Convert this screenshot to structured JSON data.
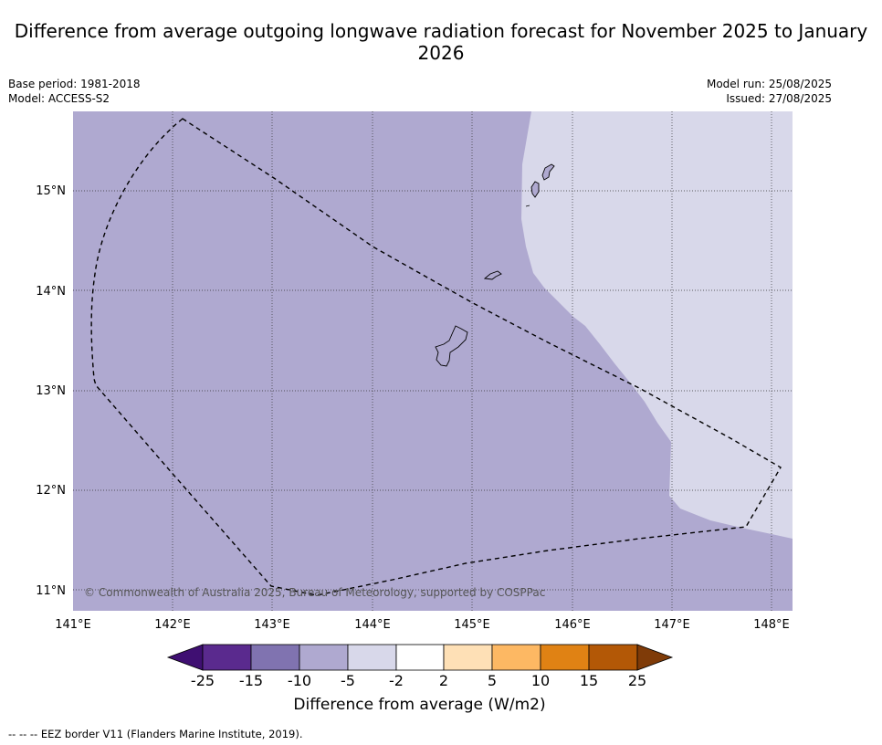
{
  "title": "Difference from average outgoing longwave radiation forecast for November 2025 to January 2026",
  "base_period": "Base period: 1981-2018",
  "model": "Model: ACCESS-S2",
  "model_run": "Model run: 25/08/2025",
  "issued": "Issued: 27/08/2025",
  "copyright": "© Commonwealth of Australia 2025, Bureau of Meteorology, supported by COSPPac",
  "lat_labels": [
    "15°N",
    "14°N",
    "13°N",
    "12°N",
    "11°N"
  ],
  "lon_labels": [
    "141°E",
    "142°E",
    "143°E",
    "144°E",
    "145°E",
    "146°E",
    "147°E",
    "148°E"
  ],
  "colorbar": {
    "title": "Difference from average (W/m2)",
    "ticks": [
      "-25",
      "-15",
      "-10",
      "-5",
      "-2",
      "2",
      "5",
      "10",
      "15",
      "25"
    ],
    "colors": [
      "#3f0f72",
      "#5a2a8e",
      "#8073b0",
      "#afa9d0",
      "#d8d8ea",
      "#ffffff",
      "#fee0b6",
      "#fdb863",
      "#e08214",
      "#b35806",
      "#7f3b08"
    ]
  },
  "field_colors": {
    "minus10_to_minus5": "#afa9d0",
    "minus5_to_minus2": "#d8d8ea"
  },
  "eez_note": "-- -- -- EEZ border V11 (Flanders Marine Institute, 2019)."
}
